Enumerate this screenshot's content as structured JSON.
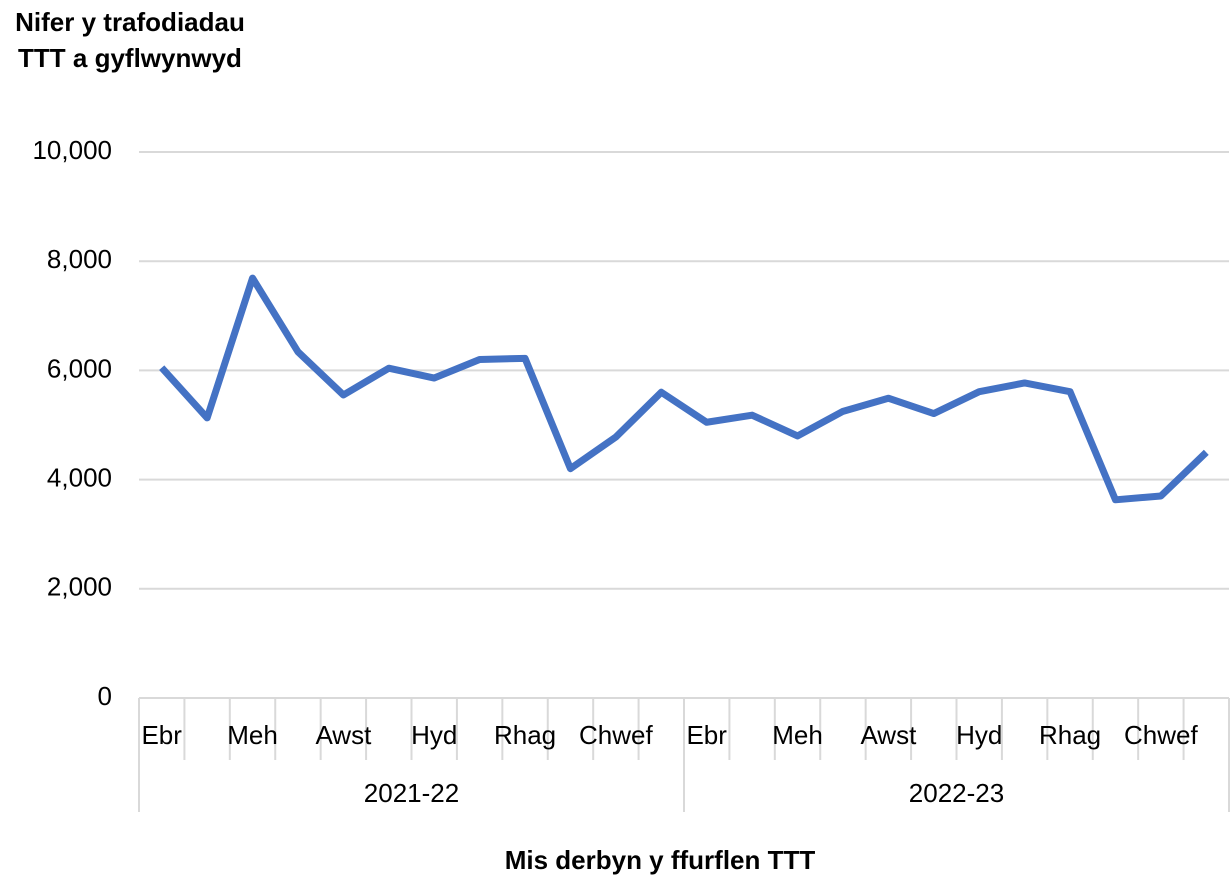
{
  "chart_data": {
    "type": "line",
    "y_label": "Nifer y trafodiadau TTT a gyflwynwyd",
    "x_label": "Mis derbyn y ffurflen TTT",
    "categories": [
      "Ebr",
      null,
      "Meh",
      null,
      "Awst",
      null,
      "Hyd",
      null,
      "Rhag",
      null,
      "Chwef",
      null,
      "Ebr",
      null,
      "Meh",
      null,
      "Awst",
      null,
      "Hyd",
      null,
      "Rhag",
      null,
      "Chwef",
      null
    ],
    "x_groups": [
      "2021-22",
      "2022-23"
    ],
    "series": [
      {
        "name": "TTT",
        "color": "#4472c4",
        "values": [
          6050,
          5130,
          7690,
          6340,
          5550,
          6040,
          5860,
          6200,
          6220,
          4200,
          4780,
          5600,
          5050,
          5180,
          4800,
          5250,
          5490,
          5210,
          5610,
          5770,
          5610,
          3630,
          3700,
          4500
        ]
      }
    ],
    "ylim": [
      0,
      10000
    ],
    "yticks": [
      0,
      {
        "value": 2000,
        "label": "2,000"
      },
      {
        "value": 4000,
        "label": "4,000"
      },
      {
        "value": 6000,
        "label": "6,000"
      },
      {
        "value": 8000,
        "label": "8,000"
      },
      {
        "value": 10000,
        "label": "10,000"
      }
    ],
    "grid": true
  }
}
